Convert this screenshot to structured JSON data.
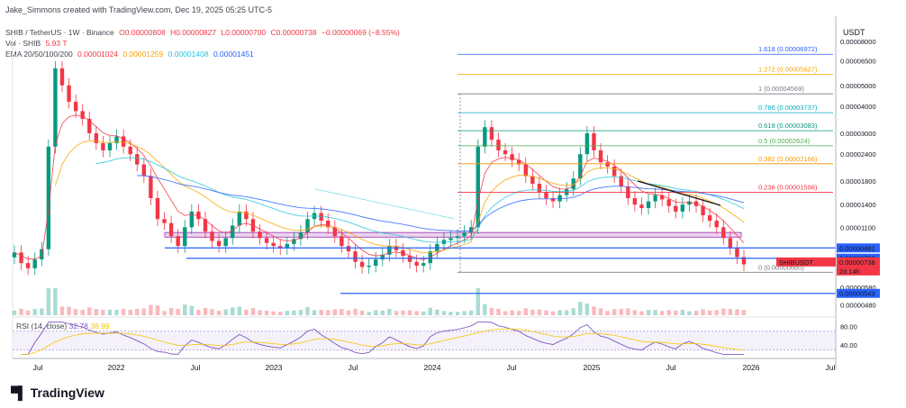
{
  "header": {
    "credit": "Jake_Simmons created with TradingView.com, Dec 19, 2025 05:25 UTC-5",
    "symbol": "SHIB / TetherUS · 1W · Binance",
    "ohlc": {
      "o": "O0.00000808",
      "h": "H0.00000827",
      "l": "L0.00000700",
      "c": "C0.00000738",
      "chg": "−0.00000069 (−8.55%)"
    },
    "vol_label": "Vol · SHIB",
    "vol_value": "5.93 T",
    "ema_label": "EMA 20/50/100/200",
    "ema_values": [
      "0.00001024",
      "0.00001259",
      "0.00001408",
      "0.00001451"
    ],
    "ema_colors": [
      "#f23645",
      "#f7a600",
      "#26c6da",
      "#2962ff"
    ]
  },
  "currency": "USDT",
  "rsi": {
    "label": "RSI (14, close)",
    "value": "32.78",
    "value2": "38.99",
    "levels": [
      "80.00",
      "40.00"
    ]
  },
  "brand": "TradingView",
  "chart_data": {
    "type": "candlestick",
    "y_scale": "log",
    "y_ticks": [
      "0.00008000",
      "0.00006500",
      "0.00005000",
      "0.00004000",
      "0.00003000",
      "0.00002400",
      "0.00001800",
      "0.00001400",
      "0.00001100",
      "0.00000790",
      "0.00000580",
      "0.00000480"
    ],
    "x_ticks": [
      "Jul",
      "2022",
      "Jul",
      "2023",
      "Jul",
      "2024",
      "Jul",
      "2025",
      "Jul",
      "2026",
      "Jul"
    ],
    "fib_levels": [
      {
        "label": "1.618 (0.00006972)",
        "value": 6.972e-05,
        "color": "#2962ff"
      },
      {
        "label": "1.272 (0.00005627)",
        "value": 5.627e-05,
        "color": "#f7a600"
      },
      {
        "label": "1 (0.00004569)",
        "value": 4.569e-05,
        "color": "#787b86"
      },
      {
        "label": "0.786 (0.00003737)",
        "value": 3.737e-05,
        "color": "#00acc1"
      },
      {
        "label": "0.618 (0.00003083)",
        "value": 3.083e-05,
        "color": "#089981"
      },
      {
        "label": "0.5 (0.00002624)",
        "value": 2.624e-05,
        "color": "#4caf50"
      },
      {
        "label": "0.382 (0.00002166)",
        "value": 2.166e-05,
        "color": "#ff9800"
      },
      {
        "label": "0.236 (0.00001598)",
        "value": 1.598e-05,
        "color": "#f23645"
      },
      {
        "label": "0 (0.00000680)",
        "value": 6.8e-06,
        "color": "#787b86"
      }
    ],
    "price_badges": [
      {
        "label": "0.00000882",
        "value": 8.82e-06,
        "color": "#2962ff"
      },
      {
        "label": "0.00000790",
        "value": 7.9e-06,
        "color": "#2962ff"
      },
      {
        "label": "SHIBUSDT",
        "sub": "0.00000738",
        "sub2": "2d 14h",
        "value": 7.38e-06,
        "color": "#f23645"
      },
      {
        "label": "0.00000543",
        "value": 5.43e-06,
        "color": "#2962ff"
      }
    ],
    "support_zone": [
      9.9e-06,
      1.04e-05
    ],
    "close_series": [
      8.4e-06,
      7.5e-06,
      7.1e-06,
      7.8e-06,
      8.7e-06,
      2.6e-05,
      6e-05,
      5e-05,
      4.2e-05,
      3.8e-05,
      3.5e-05,
      3e-05,
      2.7e-05,
      2.5e-05,
      2.7e-05,
      2.9e-05,
      2.6e-05,
      2.4e-05,
      2.15e-05,
      1.9e-05,
      1.5e-05,
      1.2e-05,
      1.15e-05,
      1e-05,
      9e-06,
      1.1e-05,
      1.3e-05,
      1.2e-05,
      1.05e-05,
      9.5e-06,
      9e-06,
      9.8e-06,
      1.12e-05,
      1.3e-05,
      1.2e-05,
      1.05e-05,
      9.8e-06,
      9.3e-06,
      9e-06,
      8.8e-06,
      9.2e-06,
      9.7e-06,
      1.04e-05,
      1.2e-05,
      1.28e-05,
      1.18e-05,
      1.1e-05,
      1e-05,
      9e-06,
      8.5e-06,
      7.6e-06,
      7.2e-06,
      7.3e-06,
      7.8e-06,
      8.2e-06,
      9e-06,
      8.6e-06,
      8.1e-06,
      7.6e-06,
      7.3e-06,
      7.5e-06,
      8.5e-06,
      9.2e-06,
      9.6e-06,
      9.8e-06,
      1e-05,
      1.04e-05,
      1.1e-05,
      2.6e-05,
      3.2e-05,
      2.8e-05,
      2.5e-05,
      2.4e-05,
      2.25e-05,
      2.15e-05,
      1.9e-05,
      1.75e-05,
      1.6e-05,
      1.5e-05,
      1.45e-05,
      1.55e-05,
      1.65e-05,
      1.85e-05,
      2.4e-05,
      3e-05,
      2.5e-05,
      2.2e-05,
      2.1e-05,
      1.9e-05,
      1.7e-05,
      1.5e-05,
      1.4e-05,
      1.35e-05,
      1.45e-05,
      1.55e-05,
      1.48e-05,
      1.38e-05,
      1.3e-05,
      1.4e-05,
      1.45e-05,
      1.38e-05,
      1.25e-05,
      1.18e-05,
      1.1e-05,
      9.8e-06,
      8.8e-06,
      8e-06,
      7.4e-06
    ],
    "series": [
      {
        "name": "EMA 20"
      },
      {
        "name": "EMA 50"
      },
      {
        "name": "EMA 100"
      },
      {
        "name": "EMA 200"
      }
    ]
  }
}
